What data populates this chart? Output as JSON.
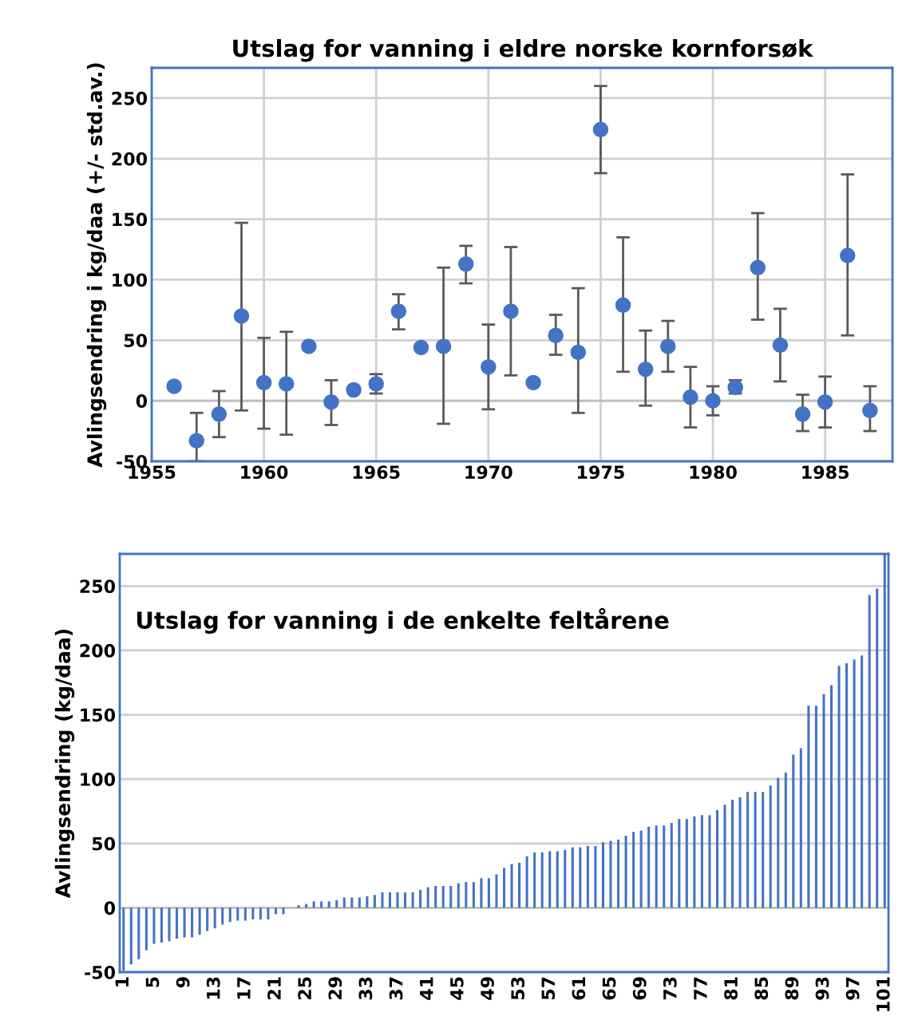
{
  "chart_data": [
    {
      "type": "scatter",
      "title": "Utslag for vanning i eldre norske kornforsøk",
      "ylabel": "Avlingsendring i kg/daa (+/- std.av.)",
      "x": [
        1956,
        1957,
        1958,
        1959,
        1960,
        1961,
        1962,
        1963,
        1964,
        1965,
        1966,
        1967,
        1968,
        1969,
        1970,
        1971,
        1972,
        1973,
        1974,
        1975,
        1976,
        1977,
        1978,
        1979,
        1980,
        1981,
        1982,
        1983,
        1984,
        1985,
        1986,
        1987
      ],
      "values": [
        12,
        -33,
        -11,
        70,
        15,
        14,
        45,
        -1,
        9,
        14,
        74,
        44,
        45,
        113,
        28,
        74,
        15,
        54,
        40,
        224,
        79,
        26,
        45,
        3,
        0,
        11,
        110,
        46,
        -11,
        -1,
        120,
        -8
      ],
      "errors": [
        null,
        [
          -50,
          -10
        ],
        [
          -30,
          8
        ],
        [
          -8,
          147
        ],
        [
          -23,
          52
        ],
        [
          -28,
          57
        ],
        null,
        [
          -20,
          17
        ],
        null,
        [
          6,
          22
        ],
        [
          59,
          88
        ],
        null,
        [
          -19,
          110
        ],
        [
          97,
          128
        ],
        [
          -7,
          63
        ],
        [
          21,
          127
        ],
        null,
        [
          38,
          71
        ],
        [
          -10,
          93
        ],
        [
          188,
          260
        ],
        [
          24,
          135
        ],
        [
          -4,
          58
        ],
        [
          24,
          66
        ],
        [
          -22,
          28
        ],
        [
          -12,
          12
        ],
        [
          6,
          17
        ],
        [
          67,
          155
        ],
        [
          16,
          76
        ],
        [
          -25,
          5
        ],
        [
          -22,
          20
        ],
        [
          54,
          187
        ],
        [
          -25,
          12
        ]
      ],
      "color": "#4472c4",
      "marker": "circle",
      "xlim": [
        1955,
        1988
      ],
      "xticks": [
        1955,
        1960,
        1965,
        1970,
        1975,
        1980,
        1985
      ],
      "ylim": [
        -50,
        275
      ],
      "yticks": [
        -50,
        0,
        50,
        100,
        150,
        200,
        250
      ],
      "grid": true,
      "legend": false
    },
    {
      "type": "bar",
      "title": "Utslag for vanning i de enkelte feltårene",
      "ylabel": "Avlingsendring (kg/daa)",
      "categories": [
        "1",
        null,
        null,
        null,
        "5",
        null,
        null,
        null,
        "9",
        null,
        null,
        null,
        "13",
        null,
        null,
        null,
        "17",
        null,
        null,
        null,
        "21",
        null,
        null,
        null,
        "25",
        null,
        null,
        null,
        "29",
        null,
        null,
        null,
        "33",
        null,
        null,
        null,
        "37",
        null,
        null,
        null,
        "41",
        null,
        null,
        null,
        "45",
        null,
        null,
        null,
        "49",
        null,
        null,
        null,
        "53",
        null,
        null,
        null,
        "57",
        null,
        null,
        null,
        "61",
        null,
        null,
        null,
        "65",
        null,
        null,
        null,
        "69",
        null,
        null,
        null,
        "73",
        null,
        null,
        null,
        "77",
        null,
        null,
        null,
        "81",
        null,
        null,
        null,
        "85",
        null,
        null,
        null,
        "89",
        null,
        null,
        null,
        "93",
        null,
        null,
        null,
        "97",
        null,
        null,
        null,
        "101"
      ],
      "values": [
        -49,
        -44,
        -40,
        -33,
        -28,
        -27,
        -26,
        -24,
        -23,
        -23,
        -21,
        -18,
        -16,
        -13,
        -11,
        -10,
        -10,
        -9,
        -9,
        -9,
        -5,
        -5,
        0,
        2,
        3,
        5,
        5,
        5,
        6,
        8,
        8,
        8,
        9,
        10,
        12,
        12,
        12,
        12,
        12,
        14,
        16,
        17,
        17,
        17,
        19,
        20,
        20,
        23,
        23,
        26,
        31,
        34,
        35,
        40,
        43,
        43,
        44,
        44,
        45,
        47,
        47,
        48,
        48,
        51,
        52,
        53,
        56,
        59,
        60,
        63,
        64,
        64,
        66,
        69,
        69,
        71,
        72,
        72,
        76,
        80,
        84,
        86,
        90,
        90,
        90,
        95,
        101,
        105,
        119,
        124,
        157,
        157,
        166,
        173,
        188,
        190,
        193,
        196,
        243,
        248,
        275
      ],
      "color": "#4472c4",
      "ylim": [
        -50,
        275
      ],
      "yticks": [
        -50,
        0,
        50,
        100,
        150,
        200,
        250
      ],
      "grid": "y",
      "legend": false
    }
  ]
}
